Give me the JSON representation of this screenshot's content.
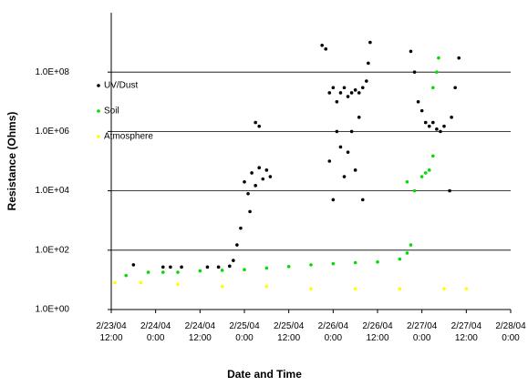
{
  "chart_data": {
    "type": "scatter",
    "y_label": "Resistance (Ohms)",
    "x_label": "Date and Time",
    "log_y": true,
    "grid": true,
    "legend": "upper left",
    "xlim": [
      "2004-02-23 12:00",
      "2004-02-28 00:00"
    ],
    "xticks": [
      {
        "value": "2004-02-23 12:00",
        "label": "2/23/04 12:00"
      },
      {
        "value": "2004-02-24 00:00",
        "label": "2/24/04 0:00"
      },
      {
        "value": "2004-02-24 12:00",
        "label": "2/24/04 12:00"
      },
      {
        "value": "2004-02-25 00:00",
        "label": "2/25/04 0:00"
      },
      {
        "value": "2004-02-25 12:00",
        "label": "2/25/04 12:00"
      },
      {
        "value": "2004-02-26 00:00",
        "label": "2/26/04 0:00"
      },
      {
        "value": "2004-02-26 12:00",
        "label": "2/26/04 12:00"
      },
      {
        "value": "2004-02-27 00:00",
        "label": "2/27/04 0:00"
      },
      {
        "value": "2004-02-27 12:00",
        "label": "2/27/04 12:00"
      },
      {
        "value": "2004-02-28 00:00",
        "label": "2/28/04 0:00"
      }
    ],
    "ylim": [
      1,
      10000000000
    ],
    "yticks": [
      {
        "value": 1,
        "label": "1.0E+00"
      },
      {
        "value": 100,
        "label": "1.0E+02"
      },
      {
        "value": 10000,
        "label": "1.0E+04"
      },
      {
        "value": 1000000,
        "label": "1.0E+06"
      },
      {
        "value": 100000000,
        "label": "1.0E+08"
      }
    ],
    "series": [
      {
        "name": "UV/Dust",
        "color": "#000000",
        "x": [
          "2004-02-23 18:00",
          "2004-02-24 02:00",
          "2004-02-24 04:00",
          "2004-02-24 07:00",
          "2004-02-24 14:00",
          "2004-02-24 17:00",
          "2004-02-24 20:00",
          "2004-02-24 21:00",
          "2004-02-24 22:00",
          "2004-02-24 23:00",
          "2004-02-25 00:00",
          "2004-02-25 01:00",
          "2004-02-25 02:00",
          "2004-02-25 03:00",
          "2004-02-25 03:00",
          "2004-02-25 04:00",
          "2004-02-25 04:00",
          "2004-02-25 05:00",
          "2004-02-25 06:00",
          "2004-02-25 07:00",
          "2004-02-25 01:30",
          "2004-02-25 21:00",
          "2004-02-25 22:00",
          "2004-02-25 23:00",
          "2004-02-25 23:00",
          "2004-02-26 00:00",
          "2004-02-26 00:00",
          "2004-02-26 01:00",
          "2004-02-26 01:00",
          "2004-02-26 02:00",
          "2004-02-26 02:00",
          "2004-02-26 03:00",
          "2004-02-26 03:00",
          "2004-02-26 04:00",
          "2004-02-26 04:00",
          "2004-02-26 05:00",
          "2004-02-26 05:00",
          "2004-02-26 06:00",
          "2004-02-26 06:00",
          "2004-02-26 07:00",
          "2004-02-26 07:00",
          "2004-02-26 08:00",
          "2004-02-26 08:00",
          "2004-02-26 09:00",
          "2004-02-26 09:30",
          "2004-02-26 10:00",
          "2004-02-26 21:00",
          "2004-02-26 22:00",
          "2004-02-26 23:00",
          "2004-02-27 00:00",
          "2004-02-27 01:00",
          "2004-02-27 02:00",
          "2004-02-27 03:00",
          "2004-02-27 04:00",
          "2004-02-27 05:00",
          "2004-02-27 06:00",
          "2004-02-27 07:30",
          "2004-02-27 08:00",
          "2004-02-27 09:00",
          "2004-02-27 10:00"
        ],
        "values": [
          32,
          27,
          27,
          27,
          27,
          27,
          29,
          45,
          150,
          550,
          20000,
          8000,
          40000,
          15000,
          2000000,
          60000,
          1500000,
          25000,
          50000,
          30000,
          2000,
          800000000,
          600000000,
          20000000,
          100000,
          30000000,
          5000,
          10000000,
          1000000,
          20000000,
          300000,
          30000000,
          30000,
          15000000,
          200000,
          20000000,
          1000000,
          25000000,
          50000,
          20000000,
          3000000,
          30000000,
          5000,
          50000000,
          200000000,
          1000000000,
          500000000,
          100000000,
          10000000,
          5000000,
          2000000,
          1500000,
          2000000,
          1200000,
          1000000,
          1500000,
          10000,
          3000000,
          30000000,
          300000000
        ]
      },
      {
        "name": "Soil",
        "color": "#00dd00",
        "x": [
          "2004-02-23 16:00",
          "2004-02-23 22:00",
          "2004-02-24 02:00",
          "2004-02-24 06:00",
          "2004-02-24 12:00",
          "2004-02-24 18:00",
          "2004-02-25 00:00",
          "2004-02-25 06:00",
          "2004-02-25 12:00",
          "2004-02-25 18:00",
          "2004-02-26 00:00",
          "2004-02-26 06:00",
          "2004-02-26 12:00",
          "2004-02-26 18:00",
          "2004-02-26 20:00",
          "2004-02-26 21:00",
          "2004-02-26 20:00",
          "2004-02-26 22:00",
          "2004-02-27 00:00",
          "2004-02-27 01:00",
          "2004-02-27 02:00",
          "2004-02-27 03:00",
          "2004-02-27 03:00",
          "2004-02-27 04:00",
          "2004-02-27 04:30"
        ],
        "values": [
          14,
          18,
          18,
          18,
          20,
          21,
          22,
          25,
          28,
          32,
          35,
          38,
          40,
          50,
          80,
          150,
          20000,
          10000,
          30000,
          40000,
          50000,
          150000,
          30000000,
          100000000,
          300000000
        ]
      },
      {
        "name": "Atmosphere",
        "color": "#ffff00",
        "x": [
          "2004-02-23 13:00",
          "2004-02-23 20:00",
          "2004-02-24 06:00",
          "2004-02-24 18:00",
          "2004-02-25 06:00",
          "2004-02-25 18:00",
          "2004-02-26 06:00",
          "2004-02-26 18:00",
          "2004-02-27 06:00",
          "2004-02-27 12:00"
        ],
        "values": [
          8,
          8,
          7,
          6,
          6,
          5,
          5,
          5,
          5,
          5
        ]
      }
    ]
  }
}
